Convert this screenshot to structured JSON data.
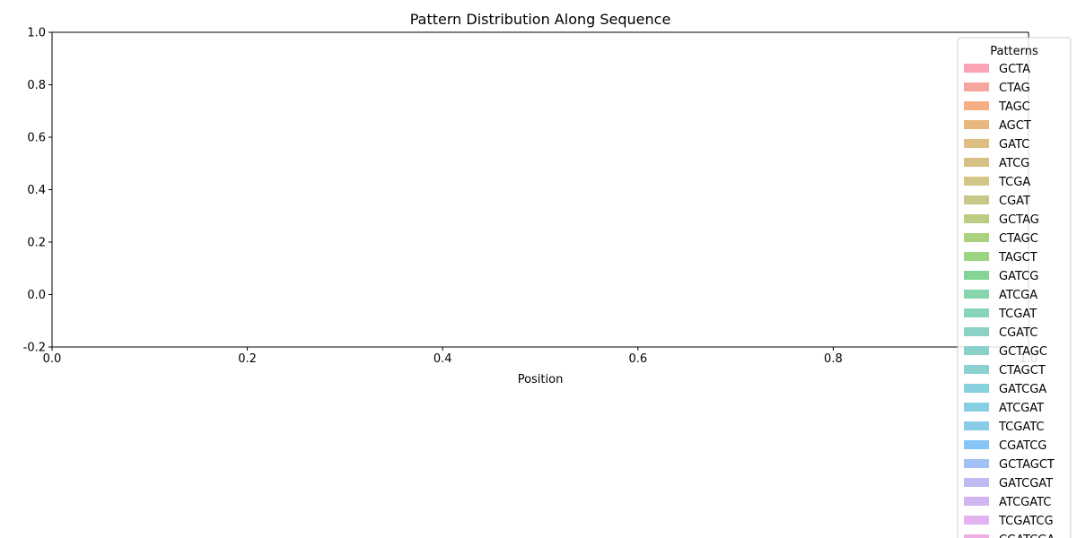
{
  "chart_data": {
    "type": "bar",
    "title": "Pattern Distribution Along Sequence",
    "xlabel": "Position",
    "ylabel": "",
    "xlim": [
      0,
      1
    ],
    "ylim": [
      -0.2,
      1
    ],
    "x_ticks": [
      "0.0",
      "0.2",
      "0.4",
      "0.6",
      "0.8",
      "1.0"
    ],
    "y_ticks": [
      "-0.2",
      "0.0",
      "0.2",
      "0.4",
      "0.6",
      "0.8",
      "1.0"
    ],
    "grid": false,
    "legend": {
      "title": "Patterns",
      "placement": "right",
      "entries": [
        {
          "label": "GCTA",
          "color": "#f8a4b4"
        },
        {
          "label": "CTAG",
          "color": "#f6a69e"
        },
        {
          "label": "TAGC",
          "color": "#f7ae82"
        },
        {
          "label": "AGCT",
          "color": "#e9b77e"
        },
        {
          "label": "GATC",
          "color": "#dfbe82"
        },
        {
          "label": "ATCG",
          "color": "#d7c084"
        },
        {
          "label": "TCGA",
          "color": "#d2c686"
        },
        {
          "label": "CGAT",
          "color": "#c5c886"
        },
        {
          "label": "GCTAG",
          "color": "#bacd82"
        },
        {
          "label": "CTAGC",
          "color": "#a9d17e"
        },
        {
          "label": "TAGCT",
          "color": "#9bd582"
        },
        {
          "label": "GATCG",
          "color": "#84d496"
        },
        {
          "label": "ATCGA",
          "color": "#86d5ae"
        },
        {
          "label": "TCGAT",
          "color": "#88d3bb"
        },
        {
          "label": "CGATC",
          "color": "#89d2c4"
        },
        {
          "label": "GCTAGC",
          "color": "#89d1cb"
        },
        {
          "label": "CTAGCT",
          "color": "#8ad2d2"
        },
        {
          "label": "GATCGA",
          "color": "#87d0dd"
        },
        {
          "label": "ATCGAT",
          "color": "#89cfe4"
        },
        {
          "label": "TCGATC",
          "color": "#8acbea"
        },
        {
          "label": "CGATCG",
          "color": "#88c4f4"
        },
        {
          "label": "GCTAGCT",
          "color": "#a3c1f4"
        },
        {
          "label": "GATCGAT",
          "color": "#bfbbf3"
        },
        {
          "label": "ATCGATC",
          "color": "#d1b6f3"
        },
        {
          "label": "TCGATCG",
          "color": "#e1b3f0"
        },
        {
          "label": "CGATCGA",
          "color": "#eeaee5"
        }
      ]
    },
    "series": []
  }
}
